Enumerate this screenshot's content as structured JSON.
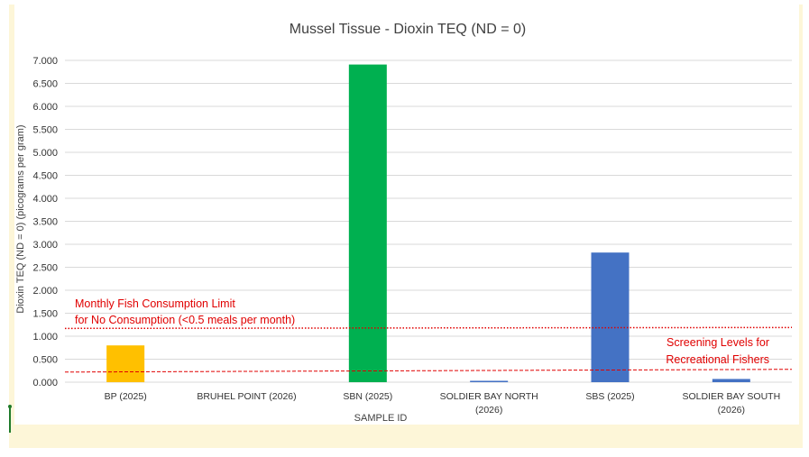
{
  "chart_data": {
    "type": "bar",
    "title": "Mussel Tissue - Dioxin TEQ (ND = 0)",
    "xlabel": "SAMPLE ID",
    "ylabel": "Dioxin TEQ (ND = 0)  (picograms per gram)",
    "ylim": [
      0,
      7
    ],
    "yticks": [
      "0.000",
      "0.500",
      "1.000",
      "1.500",
      "2.000",
      "2.500",
      "3.000",
      "3.500",
      "4.000",
      "4.500",
      "5.000",
      "5.500",
      "6.000",
      "6.500",
      "7.000"
    ],
    "grid": true,
    "categories": [
      [
        "BP (2025)"
      ],
      [
        "BRUHEL POINT (2026)"
      ],
      [
        "SBN (2025)"
      ],
      [
        "SOLDIER BAY NORTH",
        "(2026)"
      ],
      [
        "SBS (2025)"
      ],
      [
        "SOLDIER BAY SOUTH",
        "(2026)"
      ]
    ],
    "values": [
      0.8,
      0,
      6.91,
      0.03,
      2.82,
      0.07
    ],
    "bar_colors": [
      "#ffc000",
      "#4472c4",
      "#00b050",
      "#4472c4",
      "#4472c4",
      "#4472c4"
    ],
    "reference_lines": [
      {
        "label": [
          "Monthly Fish Consumption Limit",
          "for No Consumption (<0.5 meals per month)"
        ],
        "y_start": 1.17,
        "y_end": 1.19,
        "style": "dotted",
        "color": "#e00000"
      },
      {
        "label": [
          "Screening Levels for",
          "Recreational Fishers"
        ],
        "y_start": 0.22,
        "y_end": 0.28,
        "style": "dashed",
        "color": "#e00000"
      }
    ]
  }
}
